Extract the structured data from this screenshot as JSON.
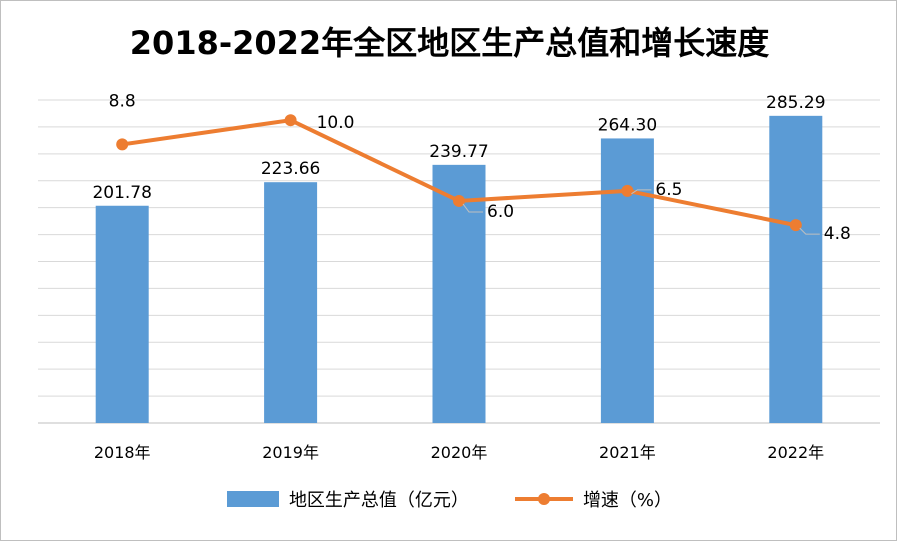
{
  "chart_data": {
    "type": "bar",
    "title": "2018-2022年全区地区生产总值和增长速度",
    "categories": [
      "2018年",
      "2019年",
      "2020年",
      "2021年",
      "2022年"
    ],
    "series": [
      {
        "name": "地区生产总值（亿元）",
        "type": "bar",
        "axis": "left",
        "values": [
          201.78,
          223.66,
          239.77,
          264.3,
          285.29
        ],
        "labels": [
          "201.78",
          "223.66",
          "239.77",
          "264.30",
          "285.29"
        ],
        "color": "#5b9bd5"
      },
      {
        "name": "增速（%）",
        "type": "line",
        "axis": "right",
        "values": [
          8.8,
          10.0,
          6.0,
          6.5,
          4.8
        ],
        "labels": [
          "8.8",
          "10.0",
          "6.0",
          "6.5",
          "4.8"
        ],
        "color": "#ed7d31"
      }
    ],
    "left_axis_range": [
      0,
      300
    ],
    "right_axis_range": [
      -5,
      11
    ],
    "grid": true,
    "legend_position": "bottom"
  }
}
